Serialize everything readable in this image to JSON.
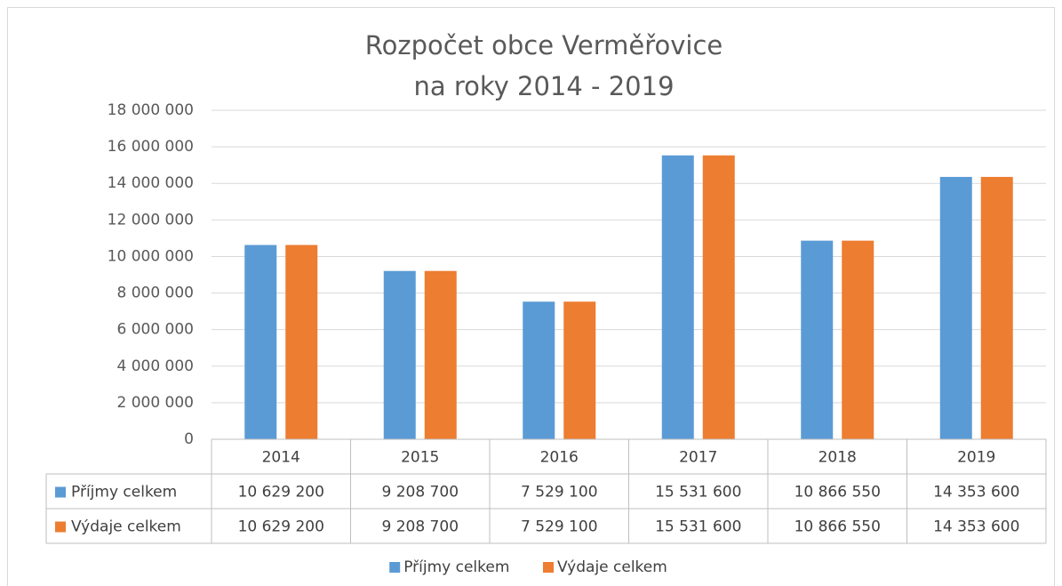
{
  "chart_data": {
    "type": "bar",
    "title": [
      "Rozpočet obce Verměřovice",
      "na roky 2014 - 2019"
    ],
    "categories": [
      "2014",
      "2015",
      "2016",
      "2017",
      "2018",
      "2019"
    ],
    "series": [
      {
        "name": "Příjmy celkem",
        "color": "#5b9bd5",
        "values": [
          10629200,
          9208700,
          7529100,
          15531600,
          10866550,
          14353600
        ],
        "value_labels": [
          "10 629 200",
          "9 208 700",
          "7 529 100",
          "15 531 600",
          "10 866 550",
          "14 353 600"
        ]
      },
      {
        "name": "Výdaje celkem",
        "color": "#ed7d31",
        "values": [
          10629200,
          9208700,
          7529100,
          15531600,
          10866550,
          14353600
        ],
        "value_labels": [
          "10 629 200",
          "9 208 700",
          "7 529 100",
          "15 531 600",
          "10 866 550",
          "14 353 600"
        ]
      }
    ],
    "ylim": [
      0,
      18000000
    ],
    "yticks": [
      0,
      {
        "value": 2000000,
        "label": "2 000 000"
      },
      {
        "value": 4000000,
        "label": "4 000 000"
      },
      {
        "value": 6000000,
        "label": "6 000 000"
      },
      {
        "value": 8000000,
        "label": "8 000 000"
      },
      {
        "value": 10000000,
        "label": "10 000 000"
      },
      {
        "value": 12000000,
        "label": "12 000 000"
      },
      {
        "value": 14000000,
        "label": "14 000 000"
      },
      {
        "value": 16000000,
        "label": "16 000 000"
      },
      {
        "value": 18000000,
        "label": "18 000 000"
      }
    ],
    "grid": true,
    "legend": "bottom",
    "data_table": true
  }
}
